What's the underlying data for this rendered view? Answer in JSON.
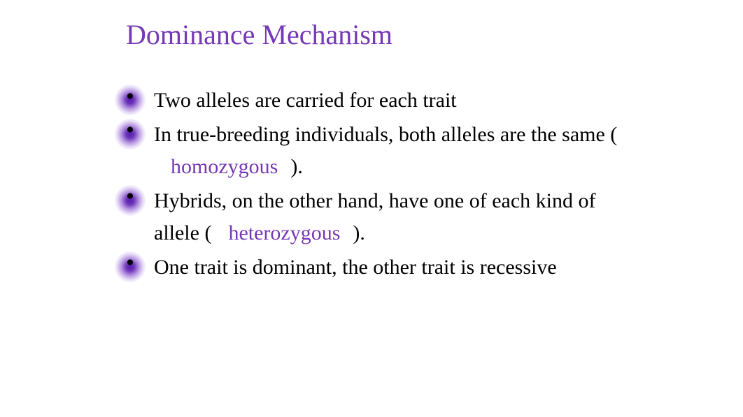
{
  "title": {
    "text": "Dominance Mechanism",
    "color": "#7538b6",
    "fontsize": 40
  },
  "body": {
    "fontsize": 30,
    "text_color": "#000000",
    "term_color": "#7538b6"
  },
  "bullets": [
    {
      "parts": [
        {
          "text": "Two alleles are carried for each trait",
          "type": "plain"
        }
      ]
    },
    {
      "parts": [
        {
          "text": "In true-breeding individuals, both alleles are the same (",
          "type": "plain"
        },
        {
          "text": "homozygous",
          "type": "term"
        },
        {
          "text": ").",
          "type": "plain"
        }
      ]
    },
    {
      "parts": [
        {
          "text": "Hybrids, on the other hand, have one of each kind of allele (",
          "type": "plain"
        },
        {
          "text": "heterozygous",
          "type": "term"
        },
        {
          "text": ").",
          "type": "plain"
        }
      ]
    },
    {
      "parts": [
        {
          "text": "One trait is dominant, the other trait is recessive",
          "type": "plain"
        }
      ]
    }
  ],
  "bullet_marker": {
    "glow_center_color": "#5110ac",
    "glow_outer_color": "#ffffff",
    "dot_char": "•"
  }
}
